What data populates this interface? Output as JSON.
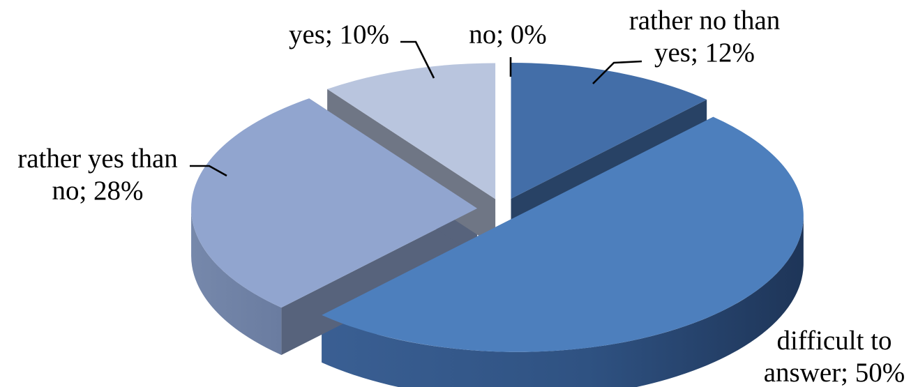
{
  "chart_data": {
    "type": "pie",
    "style": "3d-exploded",
    "series": [
      {
        "category": "no",
        "value": 0,
        "label_lines": [
          "no; 0%"
        ],
        "color": "#8fa3cc"
      },
      {
        "category": "rather no than yes",
        "value": 12,
        "label_lines": [
          "rather no than",
          "yes; 12%"
        ],
        "color": "#436ea8"
      },
      {
        "category": "difficult to answer",
        "value": 50,
        "label_lines": [
          "difficult to",
          "answer; 50%"
        ],
        "color": "#4d7fbd"
      },
      {
        "category": "rather yes than no",
        "value": 28,
        "label_lines": [
          "rather yes than",
          "no; 28%"
        ],
        "color": "#91a5cf"
      },
      {
        "category": "yes",
        "value": 10,
        "label_lines": [
          "yes; 10%"
        ],
        "color": "#b9c5de"
      }
    ],
    "legend": "none",
    "data_labels": "outside-with-leaders"
  }
}
